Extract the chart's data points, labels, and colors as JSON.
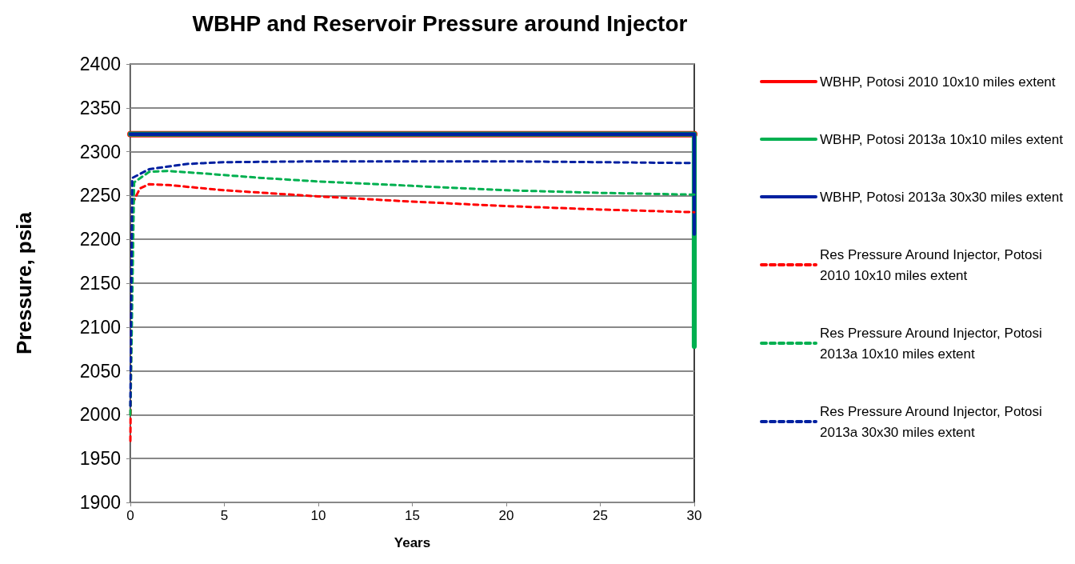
{
  "chart_data": {
    "type": "line",
    "title": "WBHP and Reservoir Pressure around Injector",
    "xlabel": "Years",
    "ylabel": "Pressure, psia",
    "xlim": [
      0,
      30
    ],
    "xticks": [
      0,
      5,
      10,
      15,
      20,
      25,
      30
    ],
    "ylim": [
      1900,
      2400
    ],
    "yticks": [
      1900,
      1950,
      2000,
      2050,
      2100,
      2150,
      2200,
      2250,
      2300,
      2350,
      2400
    ],
    "grid": "y",
    "legend": "right",
    "marker": "none",
    "series": [
      {
        "name": "WBHP, Potosi 2010 10x10 miles extent",
        "color": "#ff0000",
        "line_style": "solid",
        "x": [
          0,
          30
        ],
        "values": [
          2320,
          2320
        ]
      },
      {
        "name": "WBHP, Potosi 2013a 10x10 miles extent",
        "color": "#00b050",
        "line_style": "solid",
        "x": [
          0,
          30,
          30
        ],
        "values": [
          2320,
          2320,
          2078
        ]
      },
      {
        "name": "WBHP, Potosi 2013a 30x30 miles extent",
        "color": "#0020a0",
        "line_style": "solid",
        "x": [
          0,
          30,
          30
        ],
        "values": [
          2320,
          2320,
          2206
        ]
      },
      {
        "name": "Res Pressure Around Injector, Potosi 2010 10x10 miles extent",
        "color": "#ff0000",
        "line_style": "dashed",
        "x": [
          0,
          0.1,
          0.5,
          1,
          2,
          5,
          10,
          15,
          20,
          25,
          30
        ],
        "values": [
          1970,
          2240,
          2258,
          2263,
          2262,
          2256,
          2249,
          2243,
          2238,
          2234,
          2231
        ]
      },
      {
        "name": "Res Pressure Around Injector, Potosi 2013a 10x10 miles extent",
        "color": "#00b050",
        "line_style": "dashed",
        "x": [
          0,
          0.2,
          1,
          2,
          4,
          7,
          10,
          15,
          20,
          25,
          30
        ],
        "values": [
          2000,
          2265,
          2277,
          2278,
          2275,
          2270,
          2266,
          2261,
          2256,
          2253,
          2251
        ]
      },
      {
        "name": "Res Pressure Around Injector, Potosi 2013a 30x30 miles extent",
        "color": "#0020a0",
        "line_style": "dashed",
        "x": [
          0,
          0.1,
          1,
          3,
          5,
          10,
          15,
          20,
          25,
          30
        ],
        "values": [
          2010,
          2270,
          2280,
          2286,
          2288,
          2289,
          2289,
          2289,
          2288,
          2287
        ]
      }
    ]
  }
}
